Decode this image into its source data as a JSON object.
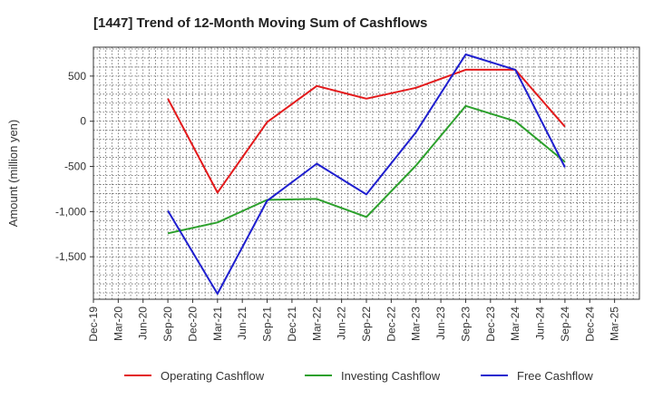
{
  "chart_data": {
    "type": "line",
    "title": "[1447]  Trend of 12-Month Moving Sum of Cashflows",
    "xlabel": "",
    "ylabel": "Amount (million yen)",
    "categories": [
      "Dec-19",
      "Mar-20",
      "Jun-20",
      "Sep-20",
      "Dec-20",
      "Mar-21",
      "Jun-21",
      "Sep-21",
      "Dec-21",
      "Mar-22",
      "Jun-22",
      "Sep-22",
      "Dec-22",
      "Mar-23",
      "Jun-23",
      "Sep-23",
      "Dec-23",
      "Mar-24",
      "Jun-24",
      "Sep-24",
      "Dec-24",
      "Mar-25"
    ],
    "ylim": [
      -1970,
      820
    ],
    "yticks": [
      500,
      0,
      -500,
      -1000,
      -1500
    ],
    "ytick_labels": [
      "500",
      "0",
      "-500",
      "-1,000",
      "-1,500"
    ],
    "grid": true,
    "legend_position": "bottom",
    "series": [
      {
        "name": "Operating Cashflow",
        "color": "#e31a1c",
        "values": [
          null,
          null,
          null,
          250,
          null,
          -790,
          null,
          -10,
          null,
          390,
          null,
          250,
          null,
          370,
          null,
          570,
          null,
          570,
          null,
          -60,
          null,
          null
        ]
      },
      {
        "name": "Investing Cashflow",
        "color": "#2ca02c",
        "values": [
          null,
          null,
          null,
          -1240,
          null,
          -1120,
          null,
          -870,
          null,
          -860,
          null,
          -1060,
          null,
          -490,
          null,
          170,
          null,
          0,
          null,
          -450,
          null,
          null
        ]
      },
      {
        "name": "Free Cashflow",
        "color": "#1f1fcf",
        "values": [
          null,
          null,
          null,
          -990,
          null,
          -1910,
          null,
          -880,
          null,
          -470,
          null,
          -810,
          null,
          -120,
          null,
          740,
          null,
          570,
          null,
          -510,
          null,
          null
        ]
      }
    ]
  }
}
